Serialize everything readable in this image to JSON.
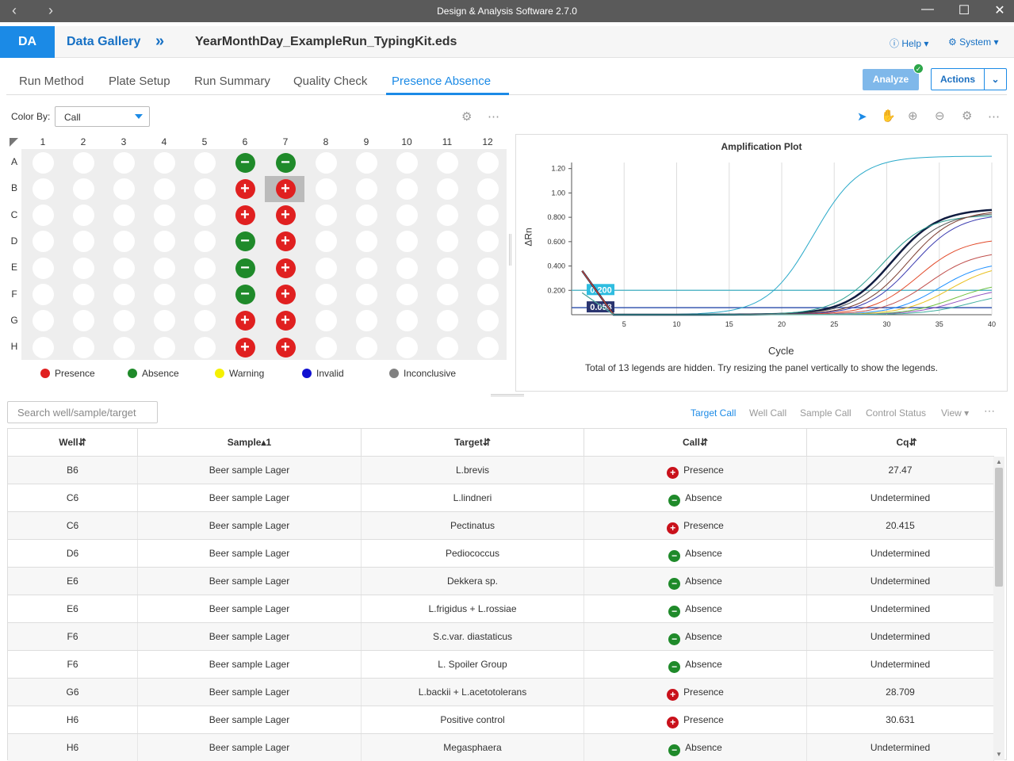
{
  "window": {
    "title": "Design & Analysis Software 2.7.0",
    "back": "‹",
    "forward": "›"
  },
  "appbar": {
    "logo": "DA",
    "gallery": "Data Gallery",
    "filename": "YearMonthDay_ExampleRun_TypingKit.eds",
    "help": "Help",
    "system": "System"
  },
  "tabs": [
    "Run Method",
    "Plate Setup",
    "Run Summary",
    "Quality Check",
    "Presence Absence"
  ],
  "active_tab": "Presence Absence",
  "toolbar": {
    "analyze": "Analyze",
    "actions": "Actions",
    "color_by_label": "Color By:",
    "color_by_value": "Call"
  },
  "plate": {
    "columns": [
      "1",
      "2",
      "3",
      "4",
      "5",
      "6",
      "7",
      "8",
      "9",
      "10",
      "11",
      "12"
    ],
    "rows": [
      "A",
      "B",
      "C",
      "D",
      "E",
      "F",
      "G",
      "H"
    ],
    "calls": {
      "A6": "-",
      "A7": "-",
      "B6": "+",
      "B7": "+",
      "C6": "+",
      "C7": "+",
      "D6": "-",
      "D7": "+",
      "E6": "-",
      "E7": "+",
      "F6": "-",
      "F7": "+",
      "G6": "+",
      "G7": "+",
      "H6": "+",
      "H7": "+"
    },
    "selected": "B7"
  },
  "legend": [
    {
      "label": "Presence",
      "color": "#e02020"
    },
    {
      "label": "Absence",
      "color": "#1f8a2a"
    },
    {
      "label": "Warning",
      "color": "#f5f000"
    },
    {
      "label": "Invalid",
      "color": "#1010d0"
    },
    {
      "label": "Inconclusive",
      "color": "#808080"
    }
  ],
  "chart_data": {
    "type": "line",
    "title": "Amplification Plot",
    "xlabel": "Cycle",
    "ylabel": "ΔRn",
    "xlim": [
      0,
      40
    ],
    "ylim": [
      0,
      1.25
    ],
    "x_ticks": [
      "5",
      "10",
      "15",
      "20",
      "25",
      "30",
      "35",
      "40"
    ],
    "y_ticks": [
      "0.200",
      "0.400",
      "0.600",
      "0.800",
      "1.00",
      "1.20"
    ],
    "thresholds": [
      "0.200",
      "0.058"
    ],
    "series": [
      {
        "ct": 19,
        "max": 1.24,
        "color": "#29a9c9"
      },
      {
        "ct": 26.5,
        "max": 0.83,
        "color": "#101c40"
      },
      {
        "ct": 25.5,
        "max": 0.78,
        "color": "#2a9d8f"
      },
      {
        "ct": 27,
        "max": 0.8,
        "color": "#555555"
      },
      {
        "ct": 28,
        "max": 0.82,
        "color": "#7a3b2e"
      },
      {
        "ct": 28.5,
        "max": 0.79,
        "color": "#3a3ab0"
      },
      {
        "ct": 29,
        "max": 0.6,
        "color": "#e24a2a"
      },
      {
        "ct": 30,
        "max": 0.5,
        "color": "#c0504d"
      },
      {
        "ct": 31,
        "max": 0.42,
        "color": "#1e90ff"
      },
      {
        "ct": 32,
        "max": 0.4,
        "color": "#e8c020"
      },
      {
        "ct": 32.5,
        "max": 0.26,
        "color": "#70c040"
      },
      {
        "ct": 33,
        "max": 0.22,
        "color": "#9050c0"
      },
      {
        "ct": 34,
        "max": 0.18,
        "color": "#40b0a0"
      }
    ]
  },
  "plot_footer": "Total of 13 legends are hidden. Try resizing the panel vertically to show the legends.",
  "search_placeholder": "Search well/sample/target",
  "table_tabs": [
    "Target Call",
    "Well Call",
    "Sample Call",
    "Control Status",
    "View"
  ],
  "table": {
    "headers": [
      "Well",
      "Sample",
      "Target",
      "Call",
      "Cq"
    ],
    "rows": [
      [
        "B6",
        "Beer sample Lager",
        "L.brevis",
        "Presence",
        "27.47"
      ],
      [
        "C6",
        "Beer sample Lager",
        "L.lindneri",
        "Absence",
        "Undetermined"
      ],
      [
        "C6",
        "Beer sample Lager",
        "Pectinatus",
        "Presence",
        "20.415"
      ],
      [
        "D6",
        "Beer sample Lager",
        "Pediococcus",
        "Absence",
        "Undetermined"
      ],
      [
        "E6",
        "Beer sample Lager",
        "Dekkera sp.",
        "Absence",
        "Undetermined"
      ],
      [
        "E6",
        "Beer sample Lager",
        "L.frigidus + L.rossiae",
        "Absence",
        "Undetermined"
      ],
      [
        "F6",
        "Beer sample Lager",
        "S.c.var. diastaticus",
        "Absence",
        "Undetermined"
      ],
      [
        "F6",
        "Beer sample Lager",
        "L. Spoiler Group",
        "Absence",
        "Undetermined"
      ],
      [
        "G6",
        "Beer sample Lager",
        "L.backii + L.acetotolerans",
        "Presence",
        "28.709"
      ],
      [
        "H6",
        "Beer sample Lager",
        "Positive control",
        "Presence",
        "30.631"
      ],
      [
        "H6",
        "Beer sample Lager",
        "Megasphaera",
        "Absence",
        "Undetermined"
      ]
    ]
  }
}
